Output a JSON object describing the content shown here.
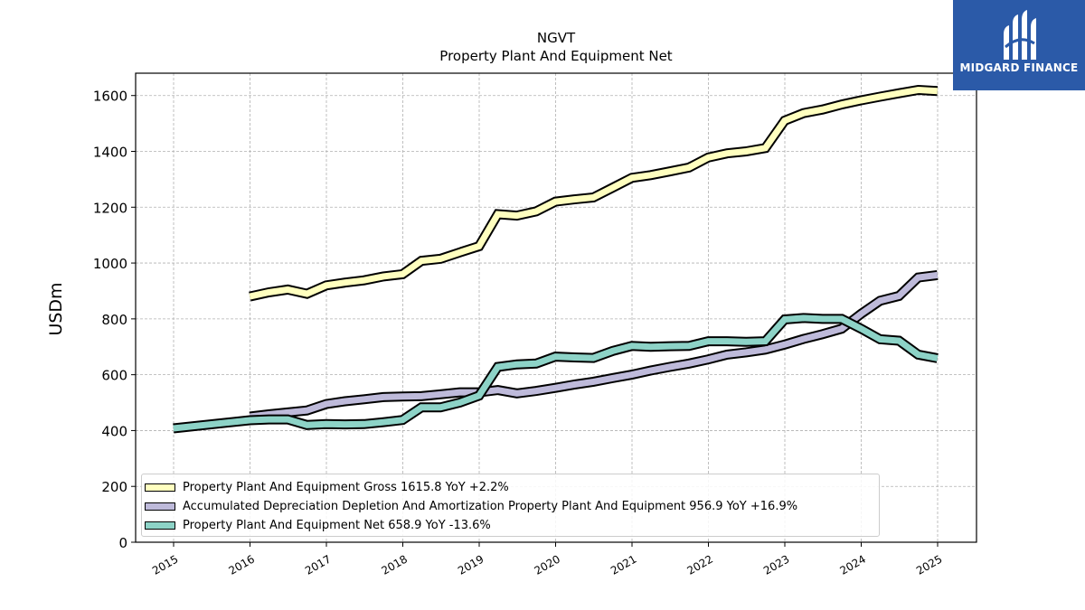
{
  "chart_data": {
    "type": "line",
    "title": "NGVT",
    "subtitle": "Property Plant And Equipment Net",
    "ylabel": "USDm",
    "xlabel": "",
    "ylim": [
      0,
      1680
    ],
    "yticks": [
      0,
      200,
      400,
      600,
      800,
      1000,
      1200,
      1400,
      1600
    ],
    "xticks": [
      "2015",
      "2016",
      "2017",
      "2018",
      "2019",
      "2020",
      "2021",
      "2022",
      "2023",
      "2024",
      "2025"
    ],
    "grid": true,
    "legend_position": "lower-left",
    "series": [
      {
        "name": "Property Plant And Equipment Gross",
        "legend": "Property Plant And Equipment Gross  1615.8 YoY +2.2%",
        "color": "#ffffbf",
        "points": [
          [
            "2015-12-31",
            880
          ],
          [
            "2016-03-31",
            895
          ],
          [
            "2016-06-30",
            905
          ],
          [
            "2016-09-30",
            890
          ],
          [
            "2016-12-31",
            920
          ],
          [
            "2017-03-31",
            930
          ],
          [
            "2017-06-30",
            938
          ],
          [
            "2017-09-30",
            952
          ],
          [
            "2017-12-31",
            960
          ],
          [
            "2018-03-31",
            1008
          ],
          [
            "2018-06-30",
            1015
          ],
          [
            "2018-09-30",
            1038
          ],
          [
            "2018-12-31",
            1060
          ],
          [
            "2019-03-31",
            1175
          ],
          [
            "2019-06-30",
            1170
          ],
          [
            "2019-09-30",
            1185
          ],
          [
            "2019-12-31",
            1220
          ],
          [
            "2020-03-31",
            1228
          ],
          [
            "2020-06-30",
            1235
          ],
          [
            "2020-09-30",
            1270
          ],
          [
            "2020-12-31",
            1305
          ],
          [
            "2021-03-31",
            1315
          ],
          [
            "2021-06-30",
            1328
          ],
          [
            "2021-09-30",
            1342
          ],
          [
            "2021-12-31",
            1378
          ],
          [
            "2022-03-31",
            1393
          ],
          [
            "2022-06-30",
            1400
          ],
          [
            "2022-09-30",
            1412
          ],
          [
            "2022-12-31",
            1510
          ],
          [
            "2023-03-31",
            1537
          ],
          [
            "2023-06-30",
            1550
          ],
          [
            "2023-09-30",
            1568
          ],
          [
            "2023-12-31",
            1583
          ],
          [
            "2024-03-31",
            1596
          ],
          [
            "2024-06-30",
            1608
          ],
          [
            "2024-09-30",
            1620
          ],
          [
            "2024-12-31",
            1616
          ]
        ]
      },
      {
        "name": "Accumulated Depreciation Depletion And Amortization Property Plant And Equipment",
        "legend": "Accumulated Depreciation Depletion And Amortization Property Plant And Equipment  956.9 YoY +16.9%",
        "color": "#bebada",
        "points": [
          [
            "2015-12-31",
            450
          ],
          [
            "2016-03-31",
            458
          ],
          [
            "2016-06-30",
            465
          ],
          [
            "2016-09-30",
            472
          ],
          [
            "2016-12-31",
            495
          ],
          [
            "2017-03-31",
            505
          ],
          [
            "2017-06-30",
            512
          ],
          [
            "2017-09-30",
            520
          ],
          [
            "2017-12-31",
            522
          ],
          [
            "2018-03-31",
            523
          ],
          [
            "2018-06-30",
            530
          ],
          [
            "2018-09-30",
            537
          ],
          [
            "2018-12-31",
            537
          ],
          [
            "2019-03-31",
            545
          ],
          [
            "2019-06-30",
            533
          ],
          [
            "2019-09-30",
            542
          ],
          [
            "2019-12-31",
            553
          ],
          [
            "2020-03-31",
            565
          ],
          [
            "2020-06-30",
            575
          ],
          [
            "2020-09-30",
            588
          ],
          [
            "2020-12-31",
            600
          ],
          [
            "2021-03-31",
            615
          ],
          [
            "2021-06-30",
            628
          ],
          [
            "2021-09-30",
            640
          ],
          [
            "2021-12-31",
            655
          ],
          [
            "2022-03-31",
            672
          ],
          [
            "2022-06-30",
            680
          ],
          [
            "2022-09-30",
            690
          ],
          [
            "2022-12-31",
            708
          ],
          [
            "2023-03-31",
            728
          ],
          [
            "2023-06-30",
            745
          ],
          [
            "2023-09-30",
            765
          ],
          [
            "2023-12-31",
            818
          ],
          [
            "2024-03-31",
            865
          ],
          [
            "2024-06-30",
            882
          ],
          [
            "2024-09-30",
            948
          ],
          [
            "2024-12-31",
            957
          ]
        ]
      },
      {
        "name": "Property Plant And Equipment Net",
        "legend": "Property Plant And Equipment Net  658.9 YoY -13.6%",
        "color": "#8dd3c7",
        "points": [
          [
            "2014-12-31",
            408
          ],
          [
            "2015-12-31",
            437
          ],
          [
            "2016-03-31",
            440
          ],
          [
            "2016-06-30",
            440
          ],
          [
            "2016-09-30",
            420
          ],
          [
            "2016-12-31",
            423
          ],
          [
            "2017-03-31",
            422
          ],
          [
            "2017-06-30",
            423
          ],
          [
            "2017-09-30",
            430
          ],
          [
            "2017-12-31",
            438
          ],
          [
            "2018-03-31",
            483
          ],
          [
            "2018-06-30",
            483
          ],
          [
            "2018-09-30",
            500
          ],
          [
            "2018-12-31",
            525
          ],
          [
            "2019-03-31",
            628
          ],
          [
            "2019-06-30",
            637
          ],
          [
            "2019-09-30",
            640
          ],
          [
            "2019-12-31",
            665
          ],
          [
            "2020-03-31",
            662
          ],
          [
            "2020-06-30",
            660
          ],
          [
            "2020-09-30",
            685
          ],
          [
            "2020-12-31",
            703
          ],
          [
            "2021-03-31",
            700
          ],
          [
            "2021-06-30",
            702
          ],
          [
            "2021-09-30",
            703
          ],
          [
            "2021-12-31",
            720
          ],
          [
            "2022-03-31",
            720
          ],
          [
            "2022-06-30",
            718
          ],
          [
            "2022-09-30",
            720
          ],
          [
            "2022-12-31",
            798
          ],
          [
            "2023-03-31",
            803
          ],
          [
            "2023-06-30",
            800
          ],
          [
            "2023-09-30",
            800
          ],
          [
            "2023-12-31",
            765
          ],
          [
            "2024-03-31",
            727
          ],
          [
            "2024-06-30",
            722
          ],
          [
            "2024-09-30",
            672
          ],
          [
            "2024-12-31",
            659
          ]
        ]
      }
    ]
  },
  "logo": {
    "text": "MIDGARD FINANCE",
    "background": "#2b5aa8"
  }
}
